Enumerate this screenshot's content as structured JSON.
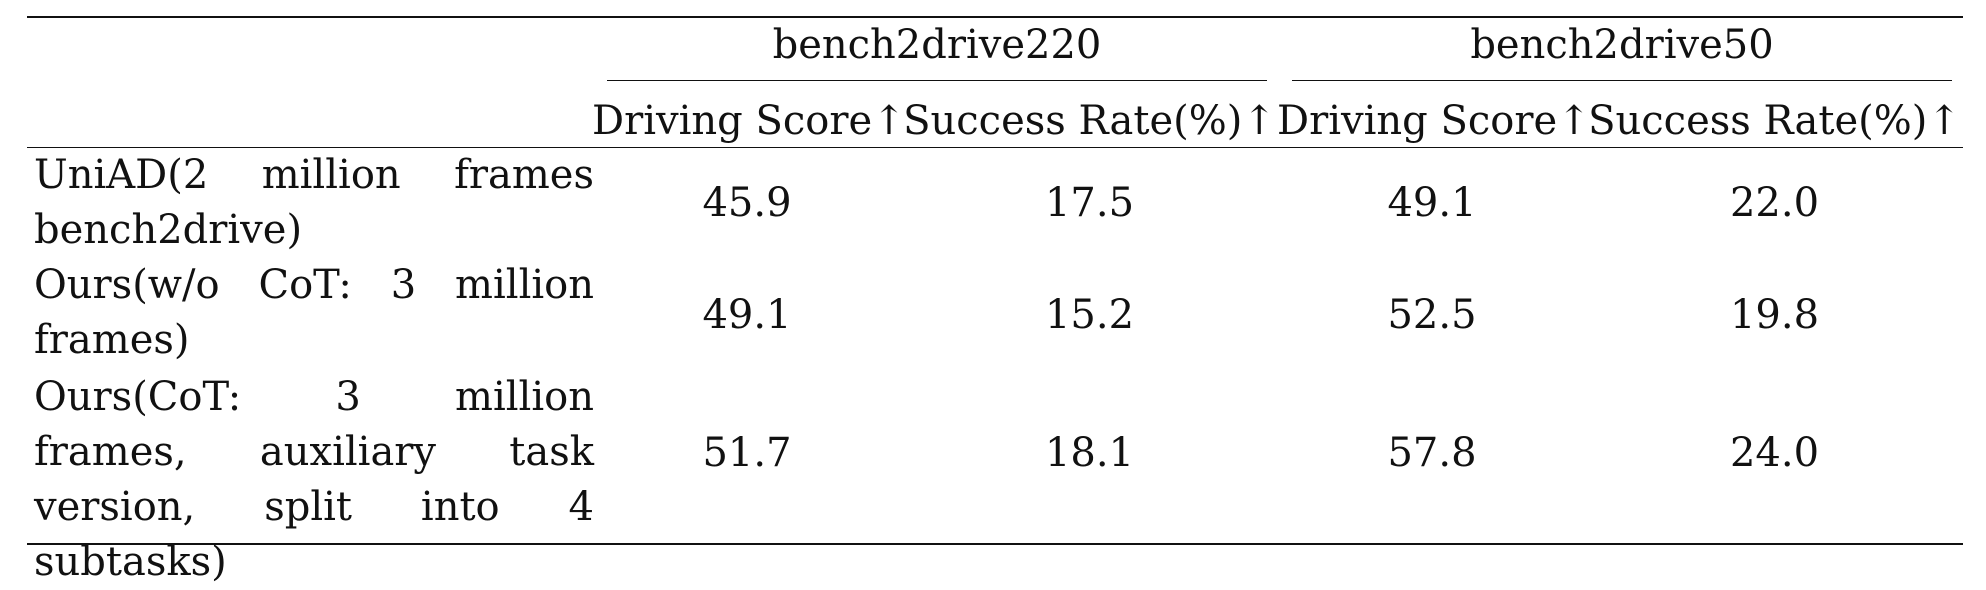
{
  "table": {
    "group_headers": [
      "bench2drive220",
      "bench2drive50"
    ],
    "column_headers": [
      "Driving Score↑",
      "Success Rate(%)↑",
      "Driving Score↑",
      "Success Rate(%)↑"
    ],
    "rows": [
      {
        "label": "UniAD(2 million frames bench2drive)",
        "values": [
          "45.9",
          "17.5",
          "49.1",
          "22.0"
        ]
      },
      {
        "label": "Ours(w/o CoT: 3 million frames)",
        "values": [
          "49.1",
          "15.2",
          "52.5",
          "19.8"
        ]
      },
      {
        "label": "Ours(CoT: 3 million frames, auxiliary task version, split into 4 subtasks)",
        "values": [
          "51.7",
          "18.1",
          "57.8",
          "24.0"
        ]
      }
    ]
  }
}
